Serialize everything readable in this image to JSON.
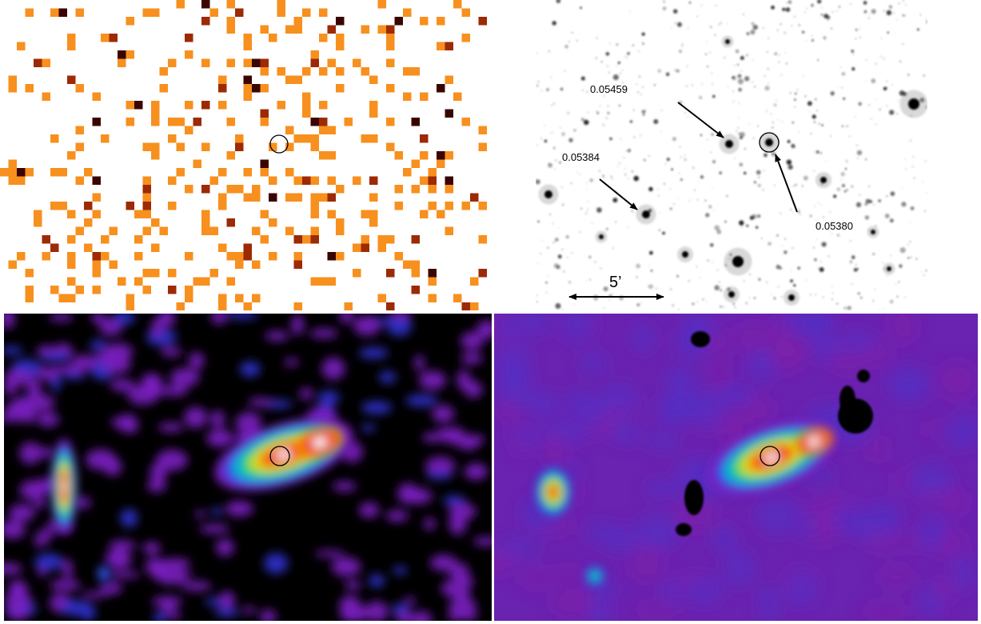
{
  "annotations": {
    "redshift_labels": [
      "0.05459",
      "0.05384",
      "0.05380"
    ],
    "scale_bar": "5’"
  }
}
